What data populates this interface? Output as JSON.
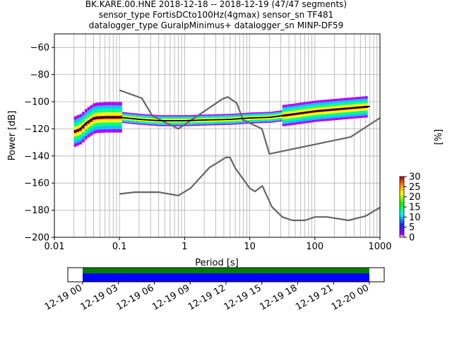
{
  "chart_data": {
    "type": "heatmap",
    "title_lines": [
      "BK.KARE.00.HNE   2018-12-18 -- 2018-12-19  (47/47 segments)",
      "sensor_type FortisDCto100Hz(4gmax) sensor_sn TF481",
      "datalogger_type GuralpMinimus+ datalogger_sn MINP-DF59"
    ],
    "xlabel": "Period [s]",
    "ylabel": "Power [dB]",
    "x_scale": "log",
    "xlim": [
      0.01,
      1000
    ],
    "ylim": [
      -200,
      -50
    ],
    "grid": true,
    "x_tick_labels": [
      "0.01",
      "0.1",
      "1",
      "10",
      "100",
      "1000"
    ],
    "y_tick_labels": [
      "−200",
      "−180",
      "−160",
      "−140",
      "−120",
      "−100",
      "−80",
      "−60"
    ],
    "x_ticks": [
      0.01,
      0.1,
      1,
      10,
      100,
      1000
    ],
    "y_ticks": [
      -200,
      -180,
      -160,
      -140,
      -120,
      -100,
      -80,
      -60
    ],
    "colorbar": {
      "label": "[%]",
      "range": [
        0,
        30
      ],
      "tick_labels": [
        "0",
        "5",
        "10",
        "15",
        "20",
        "25",
        "30"
      ],
      "tick_values": [
        0,
        5,
        10,
        15,
        20,
        25,
        30
      ]
    },
    "noise_model_high": {
      "x": [
        0.1,
        0.22,
        0.32,
        0.8,
        3.8,
        4.6,
        6.3,
        7.9,
        15.4,
        20,
        354.8,
        1000
      ],
      "y": [
        -91.5,
        -97.4,
        -110.5,
        -120,
        -98,
        -96.5,
        -101,
        -113.5,
        -120,
        -138.5,
        -126,
        -112
      ]
    },
    "noise_model_low": {
      "x": [
        0.1,
        0.17,
        0.4,
        0.8,
        1.24,
        2.4,
        4.3,
        5.0,
        6.0,
        10,
        12,
        15.6,
        21.9,
        31.6,
        45,
        70,
        101,
        154,
        328,
        600,
        1000
      ],
      "y": [
        -168,
        -166.7,
        -166.7,
        -169.2,
        -163.7,
        -148.6,
        -141.1,
        -141.1,
        -149,
        -163.8,
        -166.2,
        -162.1,
        -177.5,
        -185,
        -187.5,
        -187.5,
        -185,
        -185,
        -187.5,
        -184.4,
        -178
      ]
    },
    "mean_curve": {
      "x": [
        0.02,
        0.025,
        0.03,
        0.04,
        0.06,
        0.1,
        0.2,
        0.4,
        1,
        2,
        5,
        10,
        20,
        50,
        100,
        300,
        700
      ],
      "y": [
        -122,
        -120,
        -116,
        -112,
        -111.5,
        -111.5,
        -113,
        -114,
        -114,
        -113.5,
        -113,
        -112,
        -111.5,
        -109,
        -107,
        -105,
        -103.5
      ]
    },
    "time_coverage": {
      "tick_labels": [
        "12-19 00",
        "12-19 03",
        "12-19 06",
        "12-19 09",
        "12-19 12",
        "12-19 15",
        "12-19 18",
        "12-19 21",
        "12-20 00"
      ],
      "colors": [
        "#008000",
        "#0000ff"
      ]
    }
  }
}
